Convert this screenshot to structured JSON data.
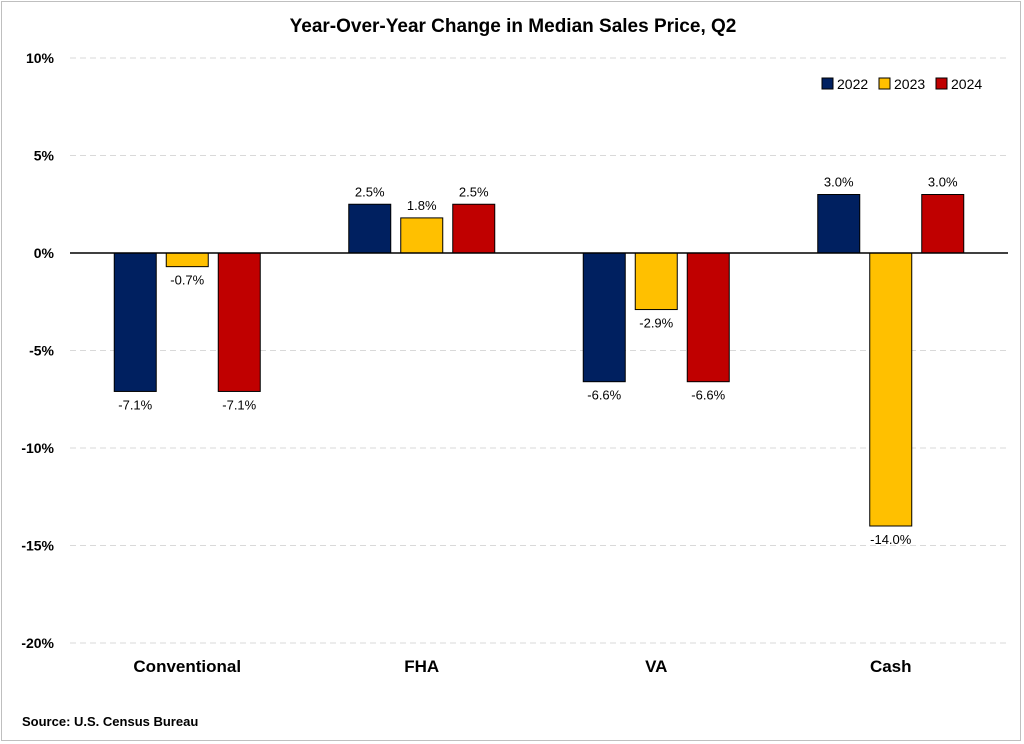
{
  "chart_data": {
    "type": "bar",
    "title": "Year-Over-Year Change in Median Sales Price, Q2",
    "categories": [
      "Conventional",
      "FHA",
      "VA",
      "Cash"
    ],
    "series": [
      {
        "name": "2022",
        "color": "#002060",
        "values": [
          -7.1,
          2.5,
          -6.6,
          3.0
        ],
        "labels": [
          "-7.1%",
          "2.5%",
          "-6.6%",
          "3.0%"
        ]
      },
      {
        "name": "2023",
        "color": "#ffc000",
        "values": [
          -0.7,
          1.8,
          -2.9,
          -14.0
        ],
        "labels": [
          "-0.7%",
          "1.8%",
          "-2.9%",
          "-14.0%"
        ]
      },
      {
        "name": "2024",
        "color": "#c00000",
        "values": [
          -7.1,
          2.5,
          -6.6,
          3.0
        ],
        "labels": [
          "-7.1%",
          "2.5%",
          "-6.6%",
          "3.0%"
        ]
      }
    ],
    "yticks": [
      10,
      5,
      0,
      -5,
      -10,
      -15,
      -20
    ],
    "ytick_labels": [
      "10%",
      "5%",
      "0%",
      "-5%",
      "-10%",
      "-15%",
      "-20%"
    ],
    "ylim": [
      -20,
      10
    ],
    "grid": true,
    "legend_position": "top-right",
    "source": "Source: U.S. Census Bureau"
  }
}
